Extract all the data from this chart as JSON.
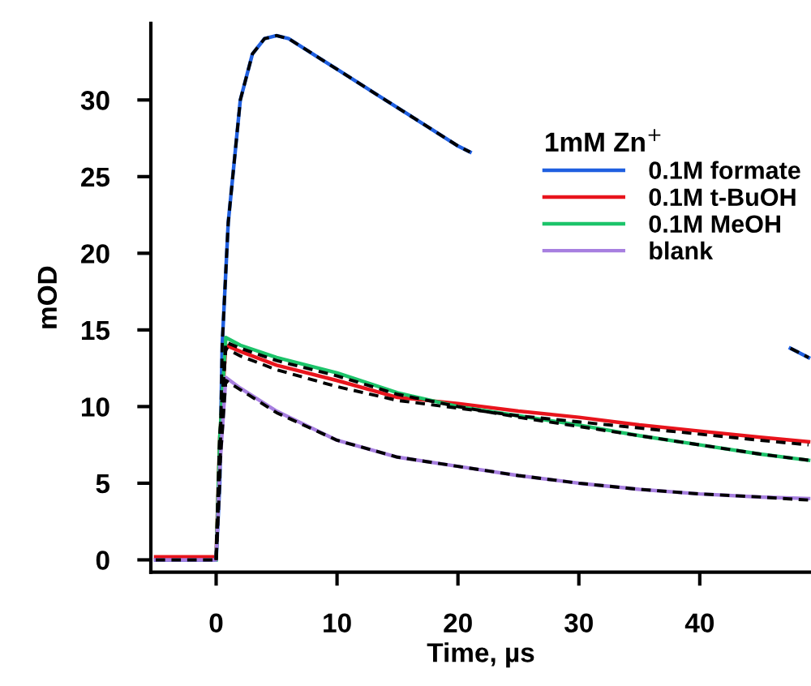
{
  "chart_data": {
    "type": "line",
    "xlabel": "Time, µs",
    "ylabel": "mOD",
    "legend_title": "1mM Zn$^{+}$",
    "legend": "top right",
    "xlim": [
      -5.4,
      49.2
    ],
    "ylim": [
      -0.8,
      35
    ],
    "xticks": [
      0,
      10,
      20,
      30,
      40
    ],
    "yticks": [
      0,
      5,
      10,
      15,
      20,
      25,
      30
    ],
    "grid": false,
    "series": [
      {
        "name": "0.1M formate",
        "color": "#1f5fe0",
        "x": [
          -5,
          -2,
          0,
          0.3,
          0.5,
          1,
          2,
          3,
          4,
          5,
          6,
          8,
          10,
          12,
          14,
          16,
          18,
          20,
          21,
          30,
          47.5,
          49
        ],
        "values": [
          0,
          0,
          0,
          5,
          14,
          22,
          30,
          33,
          34,
          34.2,
          34,
          33,
          32,
          31,
          30,
          29,
          28,
          27,
          26.6,
          null,
          13.8,
          13.2
        ]
      },
      {
        "name": "0.1M t-BuOH",
        "color": "#e8141c",
        "x": [
          -5,
          -2,
          0,
          0.3,
          0.8,
          2,
          5,
          10,
          15,
          20,
          25,
          30,
          35,
          40,
          45,
          49
        ],
        "values": [
          0.2,
          0.2,
          0.2,
          8,
          14,
          13.6,
          12.7,
          11.7,
          10.6,
          10.2,
          9.7,
          9.3,
          8.8,
          8.4,
          8.0,
          7.7
        ]
      },
      {
        "name": "0.1M MeOH",
        "color": "#1cc46a",
        "x": [
          0,
          0.3,
          0.8,
          2,
          5,
          10,
          15,
          20,
          25,
          30,
          35,
          40,
          45,
          49
        ],
        "values": [
          0,
          8,
          14.5,
          14.0,
          13.2,
          12.2,
          10.9,
          10.0,
          9.4,
          8.8,
          8.1,
          7.5,
          6.9,
          6.5
        ]
      },
      {
        "name": "blank",
        "color": "#a77fe0",
        "x": [
          -5,
          -2,
          0,
          0.3,
          0.8,
          2,
          5,
          10,
          15,
          20,
          25,
          30,
          35,
          40,
          45,
          49
        ],
        "values": [
          0,
          0,
          0,
          6,
          11.9,
          11.2,
          9.7,
          7.8,
          6.7,
          6.1,
          5.5,
          5.0,
          4.6,
          4.3,
          4.1,
          4.0
        ]
      },
      {
        "color": "#000000",
        "line_style": "dashed",
        "x": [
          -5,
          0,
          0.3,
          0.5,
          1,
          2,
          3,
          4,
          5,
          6,
          8,
          10,
          12,
          14,
          16,
          18,
          20,
          21,
          30,
          47.5,
          49
        ],
        "values": [
          0,
          0,
          5,
          14,
          22,
          30,
          33,
          34,
          34.2,
          34,
          33,
          32,
          31,
          30,
          29,
          28,
          27,
          26.6,
          null,
          13.8,
          13.2
        ]
      },
      {
        "color": "#000000",
        "line_style": "dashed",
        "x": [
          0,
          0.3,
          0.8,
          2,
          5,
          10,
          15,
          20,
          25,
          30,
          35,
          40,
          45,
          49
        ],
        "values": [
          0,
          8,
          13.8,
          13.3,
          12.4,
          11.3,
          10.4,
          9.9,
          9.4,
          9.0,
          8.6,
          8.2,
          7.8,
          7.5
        ]
      },
      {
        "color": "#000000",
        "line_style": "dashed",
        "x": [
          0,
          0.3,
          0.8,
          2,
          5,
          10,
          15,
          20,
          25,
          30,
          35,
          40,
          45,
          49
        ],
        "values": [
          0,
          8,
          14.2,
          13.8,
          13.0,
          12.0,
          10.8,
          10.0,
          9.3,
          8.7,
          8.1,
          7.5,
          6.9,
          6.5
        ]
      },
      {
        "color": "#000000",
        "line_style": "dashed",
        "x": [
          0,
          0.3,
          0.8,
          2,
          5,
          10,
          15,
          20,
          25,
          30,
          35,
          40,
          45,
          49
        ],
        "values": [
          0,
          6,
          11.7,
          11.1,
          9.6,
          7.8,
          6.7,
          6.1,
          5.5,
          5.0,
          4.6,
          4.3,
          4.1,
          3.9
        ]
      }
    ]
  }
}
